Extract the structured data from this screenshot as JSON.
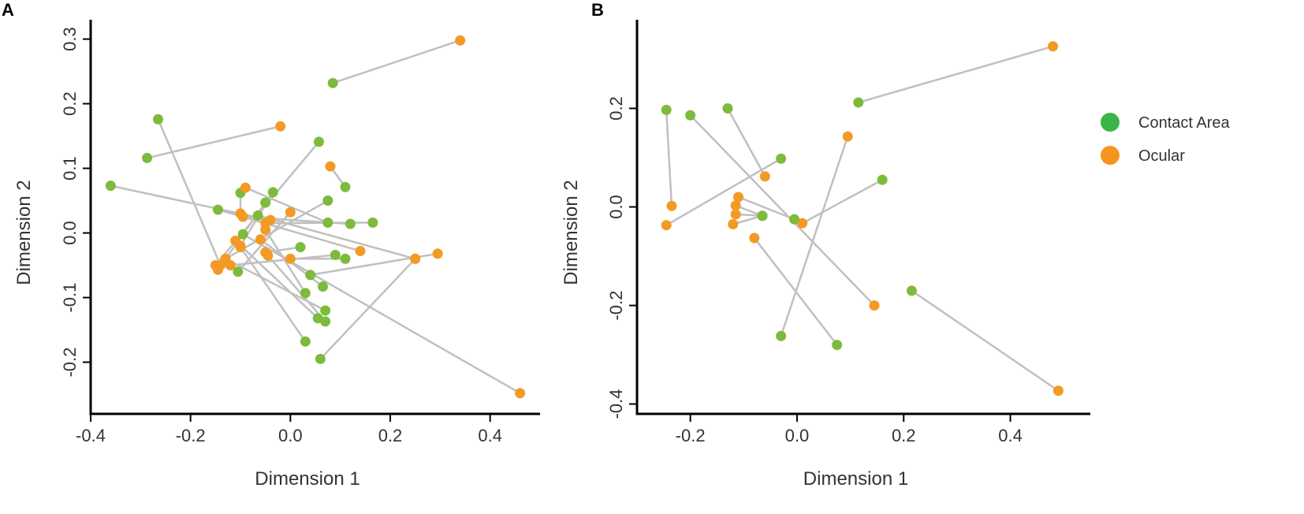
{
  "panels": {
    "a_label": "A",
    "b_label": "B"
  },
  "colors": {
    "contact": "#7dbb3c",
    "ocular": "#f39a25",
    "line": "#c0c0c0",
    "axis": "#000000",
    "legend_contact": "#3ab54a",
    "legend_ocular": "#f7941d"
  },
  "legend": {
    "items": [
      {
        "label": "Contact Area",
        "color_key": "legend_contact"
      },
      {
        "label": "Ocular",
        "color_key": "legend_ocular"
      }
    ]
  },
  "chart_data": [
    {
      "type": "scatter",
      "panel": "A",
      "title": "",
      "xlabel": "Dimension 1",
      "ylabel": "Dimension 2",
      "xlim": [
        -0.4,
        0.5
      ],
      "ylim": [
        -0.28,
        0.33
      ],
      "xticks": [
        -0.4,
        -0.2,
        0.0,
        0.2,
        0.4
      ],
      "xtick_labels": [
        "-0.4",
        "-0.2",
        "0.0",
        "0.2",
        "0.4"
      ],
      "yticks": [
        -0.2,
        -0.1,
        0.0,
        0.1,
        0.2,
        0.3
      ],
      "ytick_labels": [
        "-0.2",
        "-0.1",
        "0.0",
        "0.1",
        "0.2",
        "0.3"
      ],
      "grid": false,
      "pairs": [
        {
          "contact": [
            0.085,
            0.232
          ],
          "ocular": [
            0.34,
            0.298
          ]
        },
        {
          "contact": [
            -0.287,
            0.116
          ],
          "ocular": [
            -0.02,
            0.165
          ]
        },
        {
          "contact": [
            -0.265,
            0.176
          ],
          "ocular": [
            -0.14,
            -0.05
          ]
        },
        {
          "contact": [
            -0.36,
            0.073
          ],
          "ocular": [
            -0.04,
            0.02
          ]
        },
        {
          "contact": [
            0.057,
            0.141
          ],
          "ocular": [
            -0.15,
            -0.05
          ]
        },
        {
          "contact": [
            -0.035,
            0.063
          ],
          "ocular": [
            -0.1,
            -0.02
          ]
        },
        {
          "contact": [
            -0.145,
            0.036
          ],
          "ocular": [
            0.14,
            -0.028
          ]
        },
        {
          "contact": [
            -0.1,
            0.062
          ],
          "ocular": [
            -0.1,
            0.03
          ]
        },
        {
          "contact": [
            0.11,
            0.071
          ],
          "ocular": [
            0.08,
            0.103
          ]
        },
        {
          "contact": [
            0.075,
            0.05
          ],
          "ocular": [
            -0.13,
            -0.04
          ]
        },
        {
          "contact": [
            0.075,
            0.016
          ],
          "ocular": [
            -0.09,
            0.07
          ]
        },
        {
          "contact": [
            0.12,
            0.014
          ],
          "ocular": [
            -0.095,
            0.025
          ]
        },
        {
          "contact": [
            0.165,
            0.016
          ],
          "ocular": [
            -0.05,
            0.015
          ]
        },
        {
          "contact": [
            -0.065,
            0.027
          ],
          "ocular": [
            0.25,
            -0.04
          ]
        },
        {
          "contact": [
            0.02,
            -0.022
          ],
          "ocular": [
            -0.05,
            -0.03
          ]
        },
        {
          "contact": [
            0.09,
            -0.034
          ],
          "ocular": [
            -0.12,
            -0.05
          ]
        },
        {
          "contact": [
            0.11,
            -0.04
          ],
          "ocular": [
            0.0,
            -0.04
          ]
        },
        {
          "contact": [
            0.04,
            -0.065
          ],
          "ocular": [
            0.295,
            -0.032
          ]
        },
        {
          "contact": [
            0.065,
            -0.083
          ],
          "ocular": [
            -0.06,
            -0.01
          ]
        },
        {
          "contact": [
            0.03,
            -0.093
          ],
          "ocular": [
            -0.05,
            0.005
          ]
        },
        {
          "contact": [
            0.07,
            -0.12
          ],
          "ocular": [
            -0.13,
            -0.04
          ]
        },
        {
          "contact": [
            0.055,
            -0.132
          ],
          "ocular": [
            -0.11,
            -0.012
          ]
        },
        {
          "contact": [
            0.07,
            -0.137
          ],
          "ocular": [
            -0.045,
            -0.035
          ]
        },
        {
          "contact": [
            0.03,
            -0.168
          ],
          "ocular": [
            -0.1,
            -0.022
          ]
        },
        {
          "contact": [
            0.06,
            -0.195
          ],
          "ocular": [
            0.25,
            -0.04
          ]
        },
        {
          "contact": [
            -0.095,
            -0.002
          ],
          "ocular": [
            0.46,
            -0.248
          ]
        },
        {
          "contact": [
            -0.105,
            -0.06
          ],
          "ocular": [
            0.0,
            0.032
          ]
        },
        {
          "contact": [
            -0.05,
            0.047
          ],
          "ocular": [
            -0.145,
            -0.057
          ]
        }
      ]
    },
    {
      "type": "scatter",
      "panel": "B",
      "title": "",
      "xlabel": "Dimension 1",
      "ylabel": "Dimension 2",
      "xlim": [
        -0.3,
        0.55
      ],
      "ylim": [
        -0.42,
        0.38
      ],
      "xticks": [
        -0.2,
        0.0,
        0.2,
        0.4
      ],
      "xtick_labels": [
        "-0.2",
        "0.0",
        "0.2",
        "0.4"
      ],
      "yticks": [
        -0.4,
        -0.2,
        0.0,
        0.2
      ],
      "ytick_labels": [
        "-0.4",
        "-0.2",
        "0.0",
        "0.2"
      ],
      "grid": false,
      "pairs": [
        {
          "contact": [
            0.115,
            0.212
          ],
          "ocular": [
            0.48,
            0.326
          ]
        },
        {
          "contact": [
            -0.245,
            0.197
          ],
          "ocular": [
            -0.235,
            0.002
          ]
        },
        {
          "contact": [
            -0.13,
            0.2
          ],
          "ocular": [
            -0.06,
            0.062
          ]
        },
        {
          "contact": [
            -0.2,
            0.186
          ],
          "ocular": [
            0.145,
            -0.2
          ]
        },
        {
          "contact": [
            -0.03,
            0.098
          ],
          "ocular": [
            -0.245,
            -0.037
          ]
        },
        {
          "contact": [
            0.16,
            0.055
          ],
          "ocular": [
            0.01,
            -0.033
          ]
        },
        {
          "contact": [
            -0.065,
            -0.018
          ],
          "ocular": [
            -0.12,
            -0.035
          ]
        },
        {
          "contact": [
            -0.005,
            -0.025
          ],
          "ocular": [
            -0.11,
            0.02
          ]
        },
        {
          "contact": [
            -0.03,
            -0.262
          ],
          "ocular": [
            0.095,
            0.143
          ]
        },
        {
          "contact": [
            0.075,
            -0.28
          ],
          "ocular": [
            -0.08,
            -0.063
          ]
        },
        {
          "contact": [
            0.215,
            -0.17
          ],
          "ocular": [
            0.49,
            -0.373
          ]
        },
        {
          "contact": [
            -0.065,
            -0.018
          ],
          "ocular": [
            -0.115,
            0.003
          ]
        },
        {
          "contact": [
            -0.065,
            -0.018
          ],
          "ocular": [
            -0.115,
            -0.015
          ]
        }
      ]
    }
  ]
}
